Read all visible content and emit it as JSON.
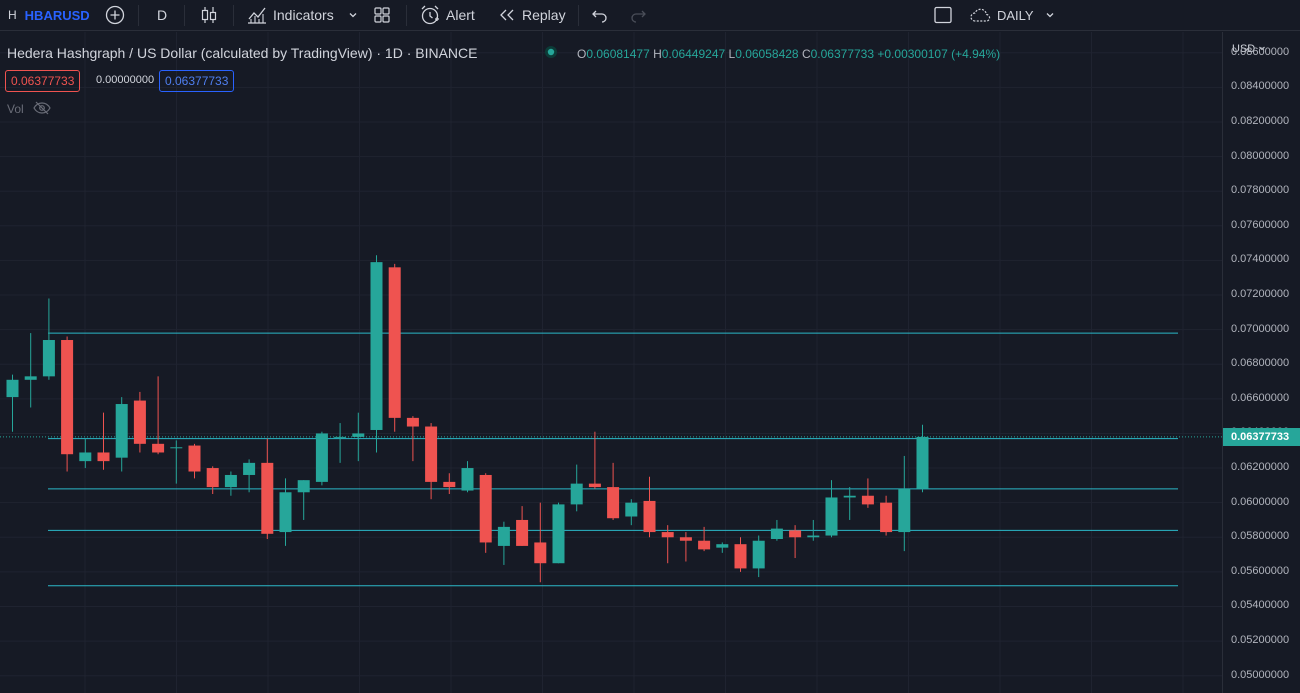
{
  "toolbar": {
    "symbol_initial": "H",
    "symbol": "HBARUSD",
    "interval": "D",
    "indicators_label": "Indicators",
    "alert_label": "Alert",
    "replay_label": "Replay",
    "timeframe_label": "DAILY"
  },
  "legend": {
    "title": "Hedera Hashgraph / US Dollar (calculated by TradingView) · 1D · BINANCE",
    "o_key": "O",
    "o_val": "0.06081477",
    "h_key": "H",
    "h_val": "0.06449247",
    "l_key": "L",
    "l_val": "0.06058428",
    "c_key": "C",
    "c_val": "0.06377733",
    "change": "+0.00300107 (+4.94%)",
    "bid": "0.06377733",
    "spread": "0.00000000",
    "ask": "0.06377733",
    "vol_label": "Vol"
  },
  "scale": {
    "currency": "USD",
    "labels": [
      "0.08600000",
      "0.08400000",
      "0.08200000",
      "0.08000000",
      "0.07800000",
      "0.07600000",
      "0.07400000",
      "0.07200000",
      "0.07000000",
      "0.06800000",
      "0.06600000",
      "0.06400000",
      "0.06200000",
      "0.06000000",
      "0.05800000",
      "0.05600000",
      "0.05400000",
      "0.05200000",
      "0.05000000"
    ],
    "current_price": "0.06377733"
  },
  "colors": {
    "up": "#26a69a",
    "down": "#ef5350",
    "line": "#2bb8c8",
    "bg": "#161a25",
    "grid": "#1f2330"
  },
  "icons": [
    "add-symbol-icon",
    "candles-icon",
    "indicators-icon",
    "layouts-icon",
    "alert-icon",
    "replay-icon",
    "undo-icon",
    "redo-icon",
    "fullscreen-icon",
    "cloud-icon",
    "eye-off-icon"
  ],
  "chart_data": {
    "type": "candlestick",
    "y_range": [
      0.049,
      0.0872
    ],
    "candles": [
      {
        "o": 0.0661,
        "h": 0.0674,
        "l": 0.0641,
        "c": 0.0671
      },
      {
        "o": 0.0671,
        "h": 0.0698,
        "l": 0.0655,
        "c": 0.0673
      },
      {
        "o": 0.0673,
        "h": 0.0718,
        "l": 0.0671,
        "c": 0.0694
      },
      {
        "o": 0.0694,
        "h": 0.0696,
        "l": 0.0618,
        "c": 0.0628
      },
      {
        "o": 0.0624,
        "h": 0.0637,
        "l": 0.062,
        "c": 0.0629
      },
      {
        "o": 0.0629,
        "h": 0.0652,
        "l": 0.0619,
        "c": 0.0624
      },
      {
        "o": 0.0626,
        "h": 0.0661,
        "l": 0.0618,
        "c": 0.0657
      },
      {
        "o": 0.0659,
        "h": 0.0664,
        "l": 0.0629,
        "c": 0.0634
      },
      {
        "o": 0.0634,
        "h": 0.0673,
        "l": 0.0628,
        "c": 0.0629
      },
      {
        "o": 0.0632,
        "h": 0.0636,
        "l": 0.0611,
        "c": 0.0632
      },
      {
        "o": 0.0633,
        "h": 0.0634,
        "l": 0.0614,
        "c": 0.0618
      },
      {
        "o": 0.062,
        "h": 0.0621,
        "l": 0.0605,
        "c": 0.0609
      },
      {
        "o": 0.0609,
        "h": 0.0618,
        "l": 0.0604,
        "c": 0.0616
      },
      {
        "o": 0.0616,
        "h": 0.0625,
        "l": 0.0606,
        "c": 0.0623
      },
      {
        "o": 0.0623,
        "h": 0.0637,
        "l": 0.0579,
        "c": 0.0582
      },
      {
        "o": 0.0583,
        "h": 0.0614,
        "l": 0.0575,
        "c": 0.0606
      },
      {
        "o": 0.0606,
        "h": 0.0613,
        "l": 0.059,
        "c": 0.0613
      },
      {
        "o": 0.0612,
        "h": 0.0641,
        "l": 0.061,
        "c": 0.064
      },
      {
        "o": 0.0638,
        "h": 0.0646,
        "l": 0.0623,
        "c": 0.0638
      },
      {
        "o": 0.0638,
        "h": 0.0652,
        "l": 0.0624,
        "c": 0.064
      },
      {
        "o": 0.0642,
        "h": 0.0743,
        "l": 0.0629,
        "c": 0.0739
      },
      {
        "o": 0.0736,
        "h": 0.0738,
        "l": 0.0641,
        "c": 0.0649
      },
      {
        "o": 0.0649,
        "h": 0.065,
        "l": 0.0624,
        "c": 0.0644
      },
      {
        "o": 0.0644,
        "h": 0.0646,
        "l": 0.0602,
        "c": 0.0612
      },
      {
        "o": 0.0612,
        "h": 0.0617,
        "l": 0.0605,
        "c": 0.0609
      },
      {
        "o": 0.0607,
        "h": 0.0624,
        "l": 0.0606,
        "c": 0.062
      },
      {
        "o": 0.0616,
        "h": 0.0617,
        "l": 0.0571,
        "c": 0.0577
      },
      {
        "o": 0.0575,
        "h": 0.0589,
        "l": 0.0564,
        "c": 0.0586
      },
      {
        "o": 0.059,
        "h": 0.0598,
        "l": 0.0575,
        "c": 0.0575
      },
      {
        "o": 0.0577,
        "h": 0.06,
        "l": 0.0554,
        "c": 0.0565
      },
      {
        "o": 0.0565,
        "h": 0.06,
        "l": 0.0565,
        "c": 0.0599
      },
      {
        "o": 0.0599,
        "h": 0.0622,
        "l": 0.0595,
        "c": 0.0611
      },
      {
        "o": 0.0611,
        "h": 0.0641,
        "l": 0.0608,
        "c": 0.0609
      },
      {
        "o": 0.0609,
        "h": 0.0623,
        "l": 0.059,
        "c": 0.0591
      },
      {
        "o": 0.0592,
        "h": 0.0602,
        "l": 0.0587,
        "c": 0.06
      },
      {
        "o": 0.0601,
        "h": 0.0615,
        "l": 0.058,
        "c": 0.0583
      },
      {
        "o": 0.0583,
        "h": 0.0587,
        "l": 0.0565,
        "c": 0.058
      },
      {
        "o": 0.058,
        "h": 0.0583,
        "l": 0.0566,
        "c": 0.0578
      },
      {
        "o": 0.0578,
        "h": 0.0586,
        "l": 0.0572,
        "c": 0.0573
      },
      {
        "o": 0.0574,
        "h": 0.0577,
        "l": 0.0571,
        "c": 0.0576
      },
      {
        "o": 0.0576,
        "h": 0.058,
        "l": 0.056,
        "c": 0.0562
      },
      {
        "o": 0.0562,
        "h": 0.0581,
        "l": 0.0557,
        "c": 0.0578
      },
      {
        "o": 0.0579,
        "h": 0.059,
        "l": 0.0578,
        "c": 0.0585
      },
      {
        "o": 0.0584,
        "h": 0.0587,
        "l": 0.0568,
        "c": 0.058
      },
      {
        "o": 0.058,
        "h": 0.059,
        "l": 0.0578,
        "c": 0.0581
      },
      {
        "o": 0.0581,
        "h": 0.0613,
        "l": 0.058,
        "c": 0.0603
      },
      {
        "o": 0.0603,
        "h": 0.0609,
        "l": 0.059,
        "c": 0.0604
      },
      {
        "o": 0.0604,
        "h": 0.0614,
        "l": 0.0597,
        "c": 0.0599
      },
      {
        "o": 0.06,
        "h": 0.0604,
        "l": 0.0581,
        "c": 0.0583
      },
      {
        "o": 0.0583,
        "h": 0.0627,
        "l": 0.0572,
        "c": 0.0608
      },
      {
        "o": 0.0608,
        "h": 0.0645,
        "l": 0.0606,
        "c": 0.0638
      }
    ],
    "horizontal_lines": [
      0.0698,
      0.0637,
      0.0608,
      0.0584,
      0.0552
    ]
  }
}
